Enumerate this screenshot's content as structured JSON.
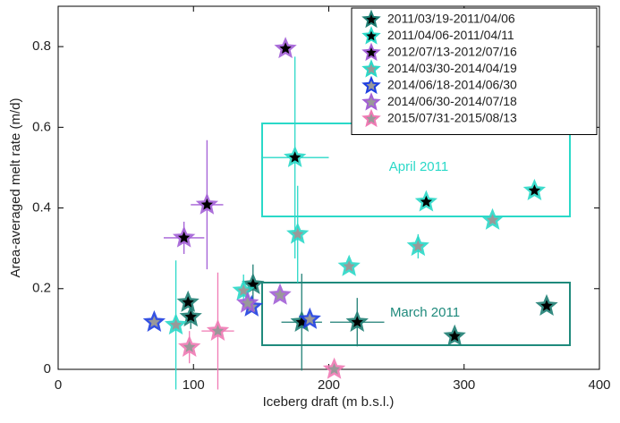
{
  "chart_data": {
    "type": "scatter",
    "x_label": "Iceberg draft (m b.s.l.)",
    "y_label": "Area-averaged melt rate (m/d)",
    "xlim": [
      0,
      400
    ],
    "xticks": [
      0,
      100,
      200,
      300,
      400
    ],
    "ylim": [
      0,
      0.9
    ],
    "yticks": [
      0,
      0.2,
      0.4,
      0.6,
      0.8
    ],
    "grid": false,
    "legend": "upper-right",
    "annotations": [
      {
        "text": "April 2011",
        "color": "#2ad9c8"
      },
      {
        "text": "March 2011",
        "color": "#1f8a7c"
      }
    ],
    "series": [
      {
        "name": "2011/03/19-2011/04/06",
        "color": "#1f7f74",
        "center": "#000000",
        "x": [
          221,
          293,
          361,
          180,
          144,
          98,
          96
        ],
        "values": [
          0.117,
          0.082,
          0.157,
          0.117,
          0.21,
          0.13,
          0.166
        ],
        "yerr": [
          0.06,
          null,
          null,
          0.12,
          0.05,
          0.03,
          null
        ],
        "xerr": [
          20,
          null,
          null,
          15,
          null,
          null,
          null
        ]
      },
      {
        "name": "2011/04/06-2011/04/11",
        "color": "#2ad9c8",
        "center": "#000000",
        "x": [
          175,
          272,
          352
        ],
        "values": [
          0.525,
          0.415,
          0.443
        ],
        "yerr": [
          0.25,
          null,
          null
        ],
        "xerr": [
          25,
          null,
          null
        ]
      },
      {
        "name": "2012/07/13-2012/07/16",
        "color": "#a35fd6",
        "center": "#000000",
        "x": [
          168,
          110,
          93
        ],
        "values": [
          0.795,
          0.408,
          0.326
        ],
        "yerr": [
          null,
          0.16,
          0.04
        ],
        "xerr": [
          null,
          12,
          15
        ]
      },
      {
        "name": "2014/03/30-2014/04/19",
        "color": "#2ad9c8",
        "center": "#999999",
        "x": [
          321,
          266,
          215,
          177,
          87,
          137
        ],
        "values": [
          0.37,
          0.305,
          0.255,
          0.335,
          0.11,
          0.195
        ],
        "yerr": [
          null,
          0.03,
          null,
          0.12,
          0.16,
          0.04
        ]
      },
      {
        "name": "2014/06/18-2014/06/30",
        "color": "#1f3fe0",
        "center": "#999999",
        "x": [
          71,
          143,
          186
        ],
        "values": [
          0.117,
          0.155,
          0.124
        ]
      },
      {
        "name": "2014/06/30-2014/07/18",
        "color": "#a35fd6",
        "center": "#999999",
        "x": [
          164,
          140
        ],
        "values": [
          0.184,
          0.164
        ]
      },
      {
        "name": "2015/07/31-2015/08/13",
        "color": "#f07ab4",
        "center": "#999999",
        "x": [
          97,
          118,
          204
        ],
        "values": [
          0.055,
          0.095,
          0
        ],
        "yerr": [
          0.04,
          0.145,
          null
        ],
        "xerr": [
          null,
          12,
          null
        ]
      }
    ]
  }
}
